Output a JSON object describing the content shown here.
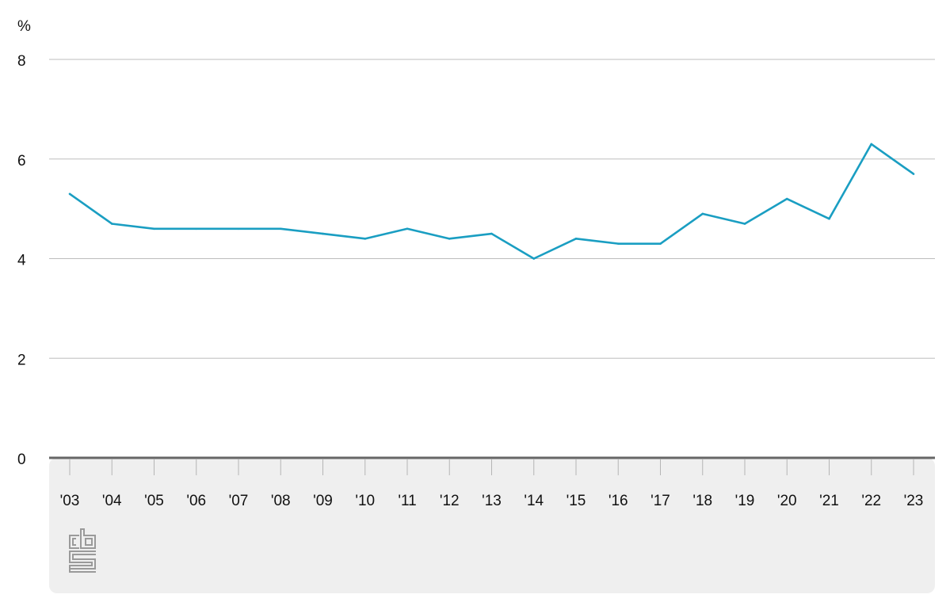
{
  "chart_data": {
    "type": "line",
    "unit_label": "%",
    "categories": [
      "'03",
      "'04",
      "'05",
      "'06",
      "'07",
      "'08",
      "'09",
      "'10",
      "'11",
      "'12",
      "'13",
      "'14",
      "'15",
      "'16",
      "'17",
      "'18",
      "'19",
      "'20",
      "'21",
      "'22",
      "'23"
    ],
    "series": [
      {
        "values": [
          5.3,
          4.7,
          4.6,
          4.6,
          4.6,
          4.6,
          4.5,
          4.4,
          4.6,
          4.4,
          4.5,
          4.0,
          4.4,
          4.3,
          4.3,
          4.9,
          4.7,
          5.2,
          4.8,
          6.3,
          5.7
        ]
      }
    ],
    "ylim": [
      0,
      8
    ],
    "yticks": [
      "0",
      "2",
      "4",
      "6",
      "8"
    ],
    "grid": true,
    "colors": {
      "line": "#1a9ec2",
      "grid": "#bdbdbd",
      "baseline": "#666666",
      "footer_bg": "#efefef",
      "logo": "#9a9a9a"
    }
  },
  "logo": {
    "name": "cbs-logo",
    "text": "cbs"
  }
}
